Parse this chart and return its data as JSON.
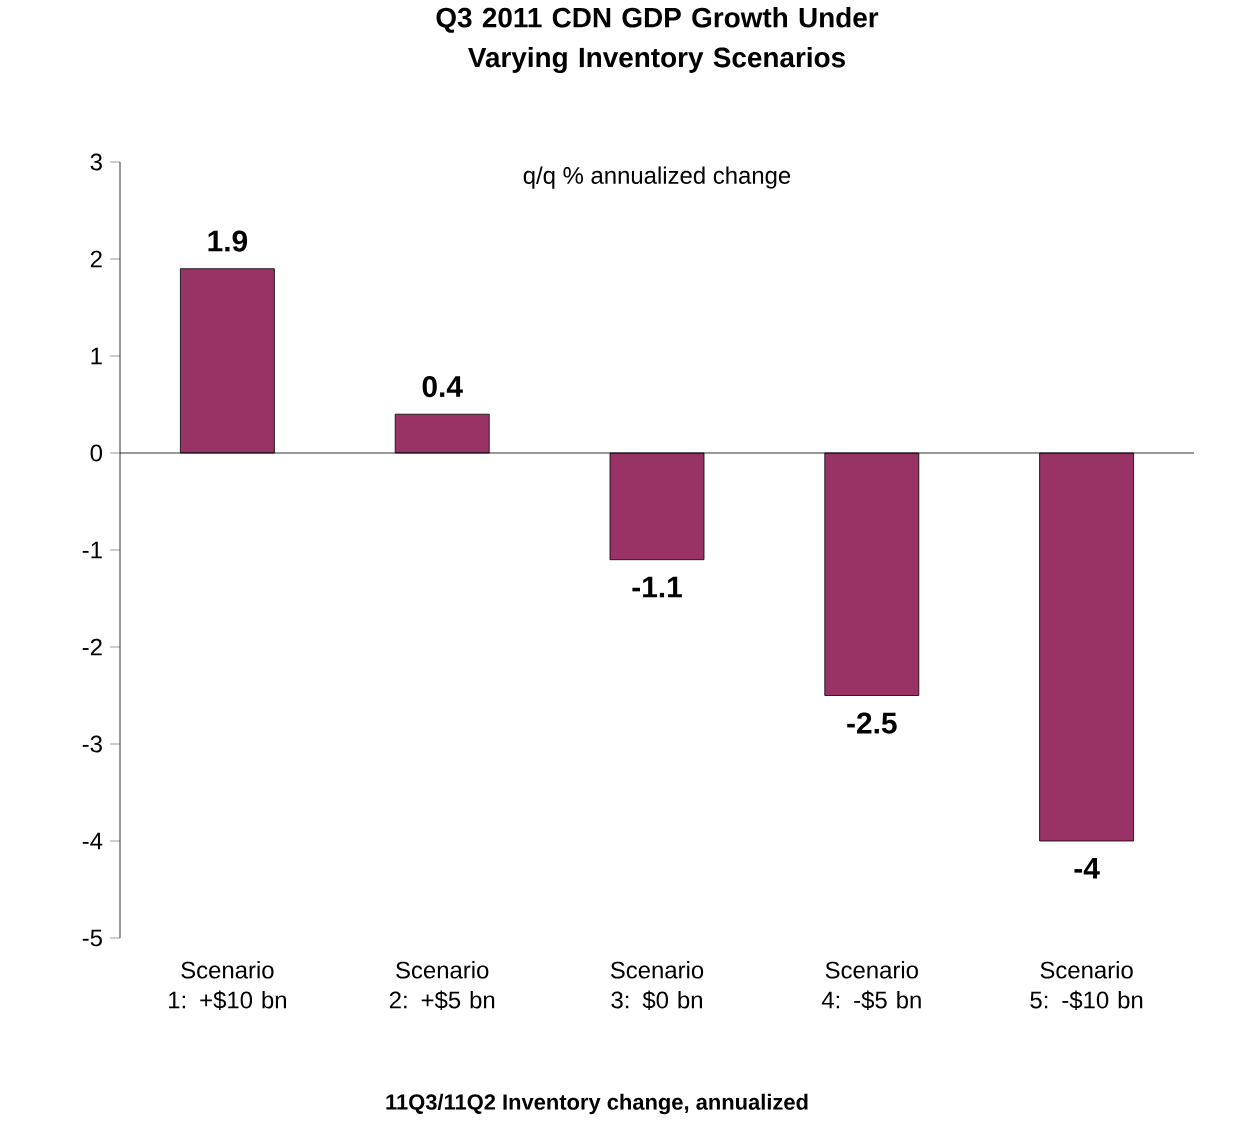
{
  "chart_data": {
    "type": "bar",
    "title": "Q3 2011 CDN GDP Growth Under Varying Inventory Scenarios",
    "xlabel": "11Q3/11Q2 Inventory change, annualized",
    "annotations": [
      "q/q % annualized change"
    ],
    "categories": [
      "Scenario 1: +$10 bn",
      "Scenario 2: +$5 bn",
      "Scenario 3: $0 bn",
      "Scenario 4: -$5 bn",
      "Scenario 5: -$10 bn"
    ],
    "values": [
      1.9,
      0.4,
      -1.1,
      -2.5,
      -4
    ],
    "color": "#993366",
    "data_labels": true,
    "ylim": [
      -5,
      3
    ],
    "yticks": [
      -5,
      -4,
      -3,
      -2,
      -1,
      0,
      1,
      2,
      3
    ]
  }
}
